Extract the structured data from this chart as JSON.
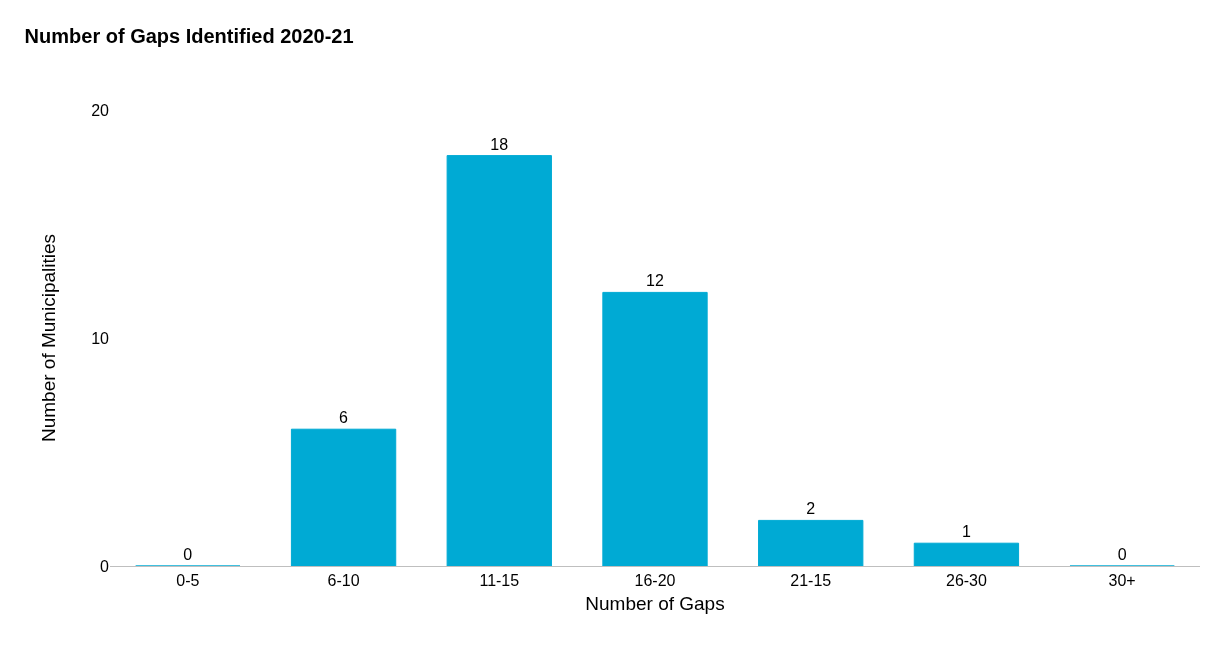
{
  "chart_data": {
    "type": "bar",
    "title": "Number of Gaps Identified 2020-21",
    "xlabel": "Number of Gaps",
    "ylabel": "Number of Municipalities",
    "categories": [
      "0-5",
      "6-10",
      "11-15",
      "16-20",
      "21-15",
      "26-30",
      "30+"
    ],
    "values": [
      0,
      6,
      18,
      12,
      2,
      1,
      0
    ],
    "color": "#00aad4",
    "ylim": [
      0,
      20
    ],
    "yticks": [
      0,
      10,
      20
    ],
    "data_labels": true
  }
}
